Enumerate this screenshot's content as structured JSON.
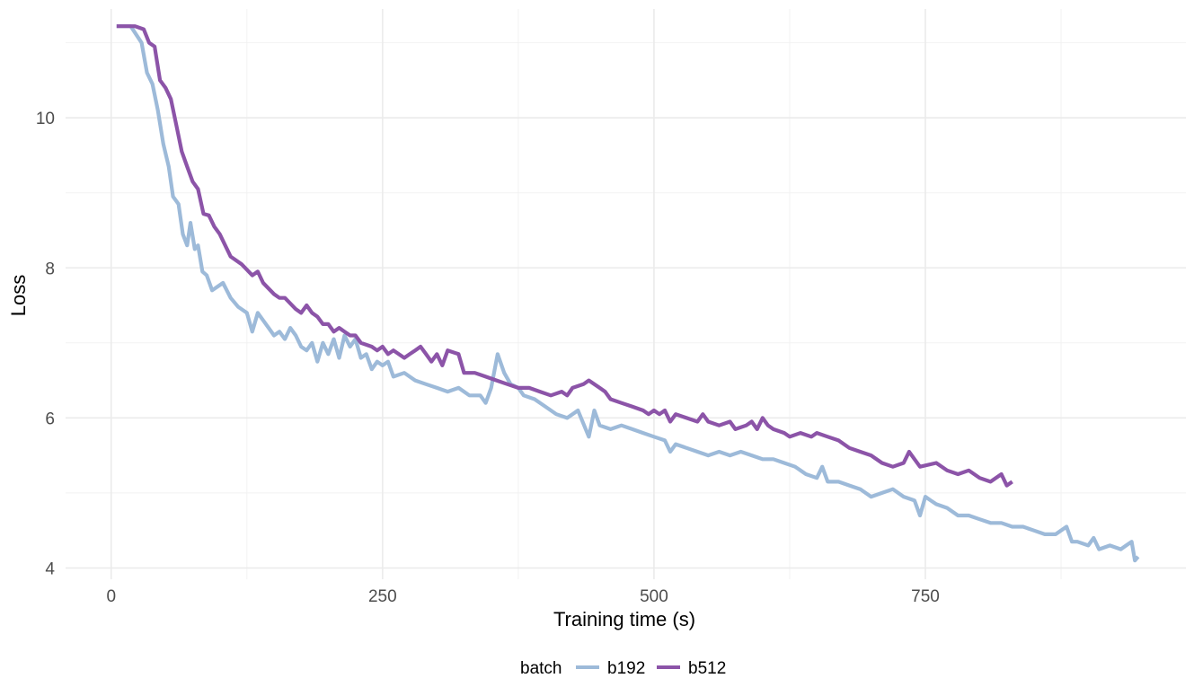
{
  "chart_data": {
    "type": "line",
    "xlabel": "Training time (s)",
    "ylabel": "Loss",
    "xlim": [
      -42,
      990
    ],
    "ylim": [
      3.85,
      11.45
    ],
    "x_ticks": [
      0,
      250,
      500,
      750
    ],
    "x_tick_labels": [
      "0",
      "250",
      "500",
      "750"
    ],
    "y_ticks": [
      4,
      6,
      8,
      10
    ],
    "y_tick_labels": [
      "4",
      "6",
      "8",
      "10"
    ],
    "grid": true,
    "legend": {
      "title": "batch",
      "position": "bottom"
    },
    "series": [
      {
        "name": "b192",
        "color": "#9dbad9",
        "points": [
          [
            5,
            11.22
          ],
          [
            18,
            11.22
          ],
          [
            28,
            11.0
          ],
          [
            33,
            10.6
          ],
          [
            38,
            10.45
          ],
          [
            43,
            10.1
          ],
          [
            48,
            9.65
          ],
          [
            53,
            9.35
          ],
          [
            57,
            8.95
          ],
          [
            62,
            8.85
          ],
          [
            66,
            8.45
          ],
          [
            70,
            8.3
          ],
          [
            73,
            8.6
          ],
          [
            77,
            8.25
          ],
          [
            80,
            8.3
          ],
          [
            84,
            7.95
          ],
          [
            88,
            7.9
          ],
          [
            93,
            7.7
          ],
          [
            98,
            7.75
          ],
          [
            103,
            7.8
          ],
          [
            110,
            7.6
          ],
          [
            117,
            7.48
          ],
          [
            125,
            7.4
          ],
          [
            130,
            7.15
          ],
          [
            135,
            7.4
          ],
          [
            140,
            7.3
          ],
          [
            145,
            7.2
          ],
          [
            150,
            7.1
          ],
          [
            155,
            7.15
          ],
          [
            160,
            7.05
          ],
          [
            165,
            7.2
          ],
          [
            170,
            7.1
          ],
          [
            175,
            6.95
          ],
          [
            180,
            6.9
          ],
          [
            185,
            7.0
          ],
          [
            190,
            6.75
          ],
          [
            195,
            7.0
          ],
          [
            200,
            6.85
          ],
          [
            205,
            7.05
          ],
          [
            210,
            6.8
          ],
          [
            215,
            7.1
          ],
          [
            220,
            6.95
          ],
          [
            225,
            7.05
          ],
          [
            230,
            6.8
          ],
          [
            235,
            6.85
          ],
          [
            240,
            6.65
          ],
          [
            245,
            6.75
          ],
          [
            250,
            6.7
          ],
          [
            255,
            6.75
          ],
          [
            260,
            6.55
          ],
          [
            270,
            6.6
          ],
          [
            280,
            6.5
          ],
          [
            290,
            6.45
          ],
          [
            300,
            6.4
          ],
          [
            310,
            6.35
          ],
          [
            320,
            6.4
          ],
          [
            330,
            6.3
          ],
          [
            340,
            6.3
          ],
          [
            345,
            6.2
          ],
          [
            350,
            6.4
          ],
          [
            356,
            6.85
          ],
          [
            362,
            6.6
          ],
          [
            368,
            6.45
          ],
          [
            375,
            6.4
          ],
          [
            380,
            6.3
          ],
          [
            390,
            6.25
          ],
          [
            400,
            6.15
          ],
          [
            410,
            6.05
          ],
          [
            420,
            6.0
          ],
          [
            430,
            6.1
          ],
          [
            440,
            5.75
          ],
          [
            445,
            6.1
          ],
          [
            450,
            5.9
          ],
          [
            460,
            5.85
          ],
          [
            470,
            5.9
          ],
          [
            480,
            5.85
          ],
          [
            490,
            5.8
          ],
          [
            500,
            5.75
          ],
          [
            510,
            5.7
          ],
          [
            515,
            5.55
          ],
          [
            520,
            5.65
          ],
          [
            530,
            5.6
          ],
          [
            540,
            5.55
          ],
          [
            550,
            5.5
          ],
          [
            560,
            5.55
          ],
          [
            570,
            5.5
          ],
          [
            580,
            5.55
          ],
          [
            590,
            5.5
          ],
          [
            600,
            5.45
          ],
          [
            610,
            5.45
          ],
          [
            620,
            5.4
          ],
          [
            630,
            5.35
          ],
          [
            640,
            5.25
          ],
          [
            650,
            5.2
          ],
          [
            655,
            5.35
          ],
          [
            660,
            5.15
          ],
          [
            670,
            5.15
          ],
          [
            680,
            5.1
          ],
          [
            690,
            5.05
          ],
          [
            700,
            4.95
          ],
          [
            710,
            5.0
          ],
          [
            720,
            5.05
          ],
          [
            730,
            4.95
          ],
          [
            740,
            4.9
          ],
          [
            745,
            4.7
          ],
          [
            750,
            4.95
          ],
          [
            755,
            4.9
          ],
          [
            760,
            4.85
          ],
          [
            770,
            4.8
          ],
          [
            780,
            4.7
          ],
          [
            790,
            4.7
          ],
          [
            800,
            4.65
          ],
          [
            810,
            4.6
          ],
          [
            820,
            4.6
          ],
          [
            830,
            4.55
          ],
          [
            840,
            4.55
          ],
          [
            850,
            4.5
          ],
          [
            860,
            4.45
          ],
          [
            870,
            4.45
          ],
          [
            880,
            4.55
          ],
          [
            885,
            4.35
          ],
          [
            890,
            4.35
          ],
          [
            900,
            4.3
          ],
          [
            905,
            4.4
          ],
          [
            910,
            4.25
          ],
          [
            920,
            4.3
          ],
          [
            930,
            4.25
          ],
          [
            935,
            4.3
          ],
          [
            940,
            4.35
          ],
          [
            943,
            4.1
          ],
          [
            946,
            4.15
          ]
        ]
      },
      {
        "name": "b512",
        "color": "#8c54a8",
        "points": [
          [
            5,
            11.22
          ],
          [
            22,
            11.22
          ],
          [
            30,
            11.18
          ],
          [
            35,
            11.0
          ],
          [
            40,
            10.95
          ],
          [
            45,
            10.5
          ],
          [
            50,
            10.4
          ],
          [
            55,
            10.25
          ],
          [
            60,
            9.9
          ],
          [
            65,
            9.55
          ],
          [
            70,
            9.35
          ],
          [
            75,
            9.15
          ],
          [
            80,
            9.05
          ],
          [
            85,
            8.72
          ],
          [
            90,
            8.7
          ],
          [
            95,
            8.55
          ],
          [
            100,
            8.45
          ],
          [
            110,
            8.15
          ],
          [
            120,
            8.05
          ],
          [
            130,
            7.9
          ],
          [
            135,
            7.95
          ],
          [
            140,
            7.8
          ],
          [
            150,
            7.65
          ],
          [
            155,
            7.6
          ],
          [
            160,
            7.6
          ],
          [
            170,
            7.45
          ],
          [
            175,
            7.4
          ],
          [
            180,
            7.5
          ],
          [
            185,
            7.4
          ],
          [
            190,
            7.35
          ],
          [
            195,
            7.25
          ],
          [
            200,
            7.25
          ],
          [
            205,
            7.15
          ],
          [
            210,
            7.2
          ],
          [
            215,
            7.15
          ],
          [
            220,
            7.1
          ],
          [
            225,
            7.1
          ],
          [
            230,
            7.0
          ],
          [
            240,
            6.95
          ],
          [
            245,
            6.9
          ],
          [
            250,
            6.95
          ],
          [
            255,
            6.85
          ],
          [
            260,
            6.9
          ],
          [
            270,
            6.8
          ],
          [
            275,
            6.85
          ],
          [
            280,
            6.9
          ],
          [
            285,
            6.95
          ],
          [
            290,
            6.85
          ],
          [
            295,
            6.75
          ],
          [
            300,
            6.85
          ],
          [
            305,
            6.7
          ],
          [
            310,
            6.9
          ],
          [
            320,
            6.85
          ],
          [
            325,
            6.6
          ],
          [
            335,
            6.6
          ],
          [
            345,
            6.55
          ],
          [
            355,
            6.5
          ],
          [
            365,
            6.45
          ],
          [
            375,
            6.4
          ],
          [
            385,
            6.4
          ],
          [
            395,
            6.35
          ],
          [
            405,
            6.3
          ],
          [
            415,
            6.35
          ],
          [
            420,
            6.3
          ],
          [
            425,
            6.4
          ],
          [
            435,
            6.45
          ],
          [
            440,
            6.5
          ],
          [
            450,
            6.4
          ],
          [
            455,
            6.35
          ],
          [
            460,
            6.25
          ],
          [
            470,
            6.2
          ],
          [
            480,
            6.15
          ],
          [
            490,
            6.1
          ],
          [
            495,
            6.05
          ],
          [
            500,
            6.1
          ],
          [
            505,
            6.05
          ],
          [
            510,
            6.1
          ],
          [
            515,
            5.95
          ],
          [
            520,
            6.05
          ],
          [
            530,
            6.0
          ],
          [
            540,
            5.95
          ],
          [
            545,
            6.05
          ],
          [
            550,
            5.95
          ],
          [
            560,
            5.9
          ],
          [
            570,
            5.95
          ],
          [
            575,
            5.85
          ],
          [
            585,
            5.9
          ],
          [
            590,
            5.95
          ],
          [
            595,
            5.85
          ],
          [
            600,
            6.0
          ],
          [
            605,
            5.9
          ],
          [
            610,
            5.85
          ],
          [
            620,
            5.8
          ],
          [
            625,
            5.75
          ],
          [
            635,
            5.8
          ],
          [
            645,
            5.75
          ],
          [
            650,
            5.8
          ],
          [
            660,
            5.75
          ],
          [
            670,
            5.7
          ],
          [
            680,
            5.6
          ],
          [
            690,
            5.55
          ],
          [
            700,
            5.5
          ],
          [
            710,
            5.4
          ],
          [
            720,
            5.35
          ],
          [
            730,
            5.4
          ],
          [
            735,
            5.55
          ],
          [
            740,
            5.45
          ],
          [
            745,
            5.35
          ],
          [
            760,
            5.4
          ],
          [
            770,
            5.3
          ],
          [
            780,
            5.25
          ],
          [
            790,
            5.3
          ],
          [
            800,
            5.2
          ],
          [
            810,
            5.15
          ],
          [
            820,
            5.25
          ],
          [
            825,
            5.1
          ],
          [
            830,
            5.15
          ]
        ]
      }
    ]
  }
}
